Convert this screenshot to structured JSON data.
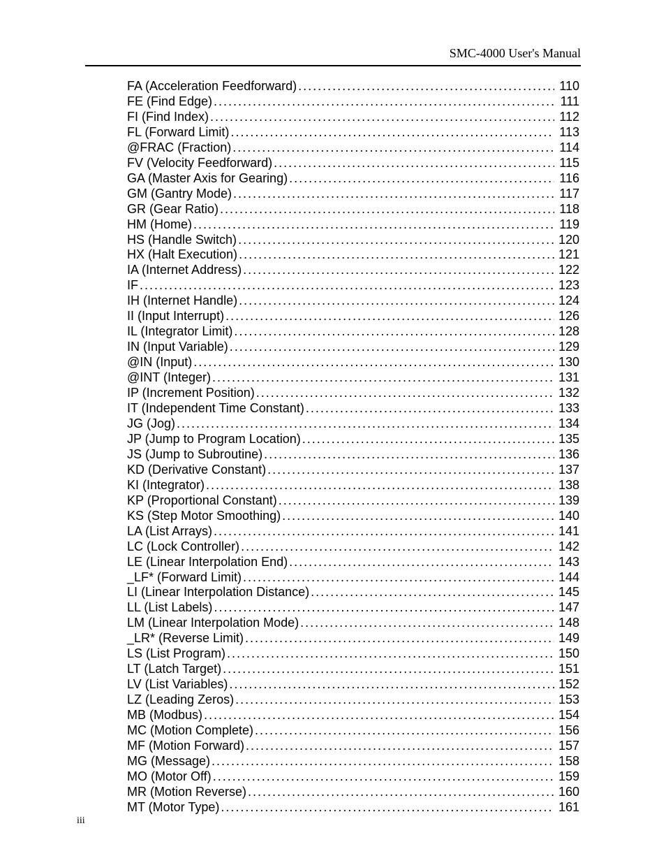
{
  "header": {
    "title": "SMC-4000 User's Manual"
  },
  "page_number": "iii",
  "toc": [
    {
      "label": "FA (Acceleration Feedforward)",
      "page": "110"
    },
    {
      "label": "FE (Find Edge)",
      "page": "111"
    },
    {
      "label": "FI (Find Index)",
      "page": "112"
    },
    {
      "label": "FL (Forward Limit)",
      "page": "113"
    },
    {
      "label": "@FRAC (Fraction)",
      "page": "114"
    },
    {
      "label": "FV (Velocity Feedforward)",
      "page": "115"
    },
    {
      "label": "GA (Master Axis for Gearing)",
      "page": "116"
    },
    {
      "label": "GM (Gantry Mode)",
      "page": "117"
    },
    {
      "label": "GR (Gear Ratio)",
      "page": "118"
    },
    {
      "label": "HM (Home)",
      "page": "119"
    },
    {
      "label": "HS (Handle Switch)",
      "page": "120"
    },
    {
      "label": "HX (Halt Execution)",
      "page": "121"
    },
    {
      "label": "IA (Internet Address)",
      "page": "122"
    },
    {
      "label": "IF",
      "page": "123"
    },
    {
      "label": "IH (Internet Handle)",
      "page": "124"
    },
    {
      "label": "II (Input Interrupt)",
      "page": "126"
    },
    {
      "label": "IL (Integrator Limit)",
      "page": "128"
    },
    {
      "label": "IN (Input Variable)",
      "page": "129"
    },
    {
      "label": "@IN (Input)",
      "page": "130"
    },
    {
      "label": "@INT (Integer)",
      "page": "131"
    },
    {
      "label": "IP (Increment Position)",
      "page": "132"
    },
    {
      "label": "IT (Independent Time Constant)",
      "page": "133"
    },
    {
      "label": "JG (Jog)",
      "page": "134"
    },
    {
      "label": "JP (Jump to Program Location)",
      "page": "135"
    },
    {
      "label": "JS (Jump to Subroutine)",
      "page": "136"
    },
    {
      "label": "KD (Derivative Constant)",
      "page": "137"
    },
    {
      "label": "KI (Integrator)",
      "page": "138"
    },
    {
      "label": "KP (Proportional Constant)",
      "page": "139"
    },
    {
      "label": "KS (Step Motor Smoothing)",
      "page": "140"
    },
    {
      "label": "LA (List Arrays)",
      "page": "141"
    },
    {
      "label": "LC (Lock Controller)",
      "page": "142"
    },
    {
      "label": "LE (Linear Interpolation End)",
      "page": "143"
    },
    {
      "label": "_LF* (Forward Limit)",
      "page": "144"
    },
    {
      "label": "LI (Linear Interpolation Distance)",
      "page": "145"
    },
    {
      "label": "LL (List Labels)",
      "page": "147"
    },
    {
      "label": "LM (Linear Interpolation Mode)",
      "page": "148"
    },
    {
      "label": "_LR* (Reverse Limit)",
      "page": "149"
    },
    {
      "label": "LS (List Program)",
      "page": "150"
    },
    {
      "label": "LT (Latch Target)",
      "page": "151"
    },
    {
      "label": "LV (List Variables)",
      "page": "152"
    },
    {
      "label": "LZ (Leading Zeros)",
      "page": "153"
    },
    {
      "label": "MB (Modbus)",
      "page": "154"
    },
    {
      "label": "MC (Motion Complete)",
      "page": "156"
    },
    {
      "label": "MF (Motion Forward)",
      "page": "157"
    },
    {
      "label": "MG (Message)",
      "page": "158"
    },
    {
      "label": "MO (Motor Off)",
      "page": "159"
    },
    {
      "label": "MR (Motion Reverse)",
      "page": "160"
    },
    {
      "label": "MT (Motor Type)",
      "page": "161"
    }
  ]
}
